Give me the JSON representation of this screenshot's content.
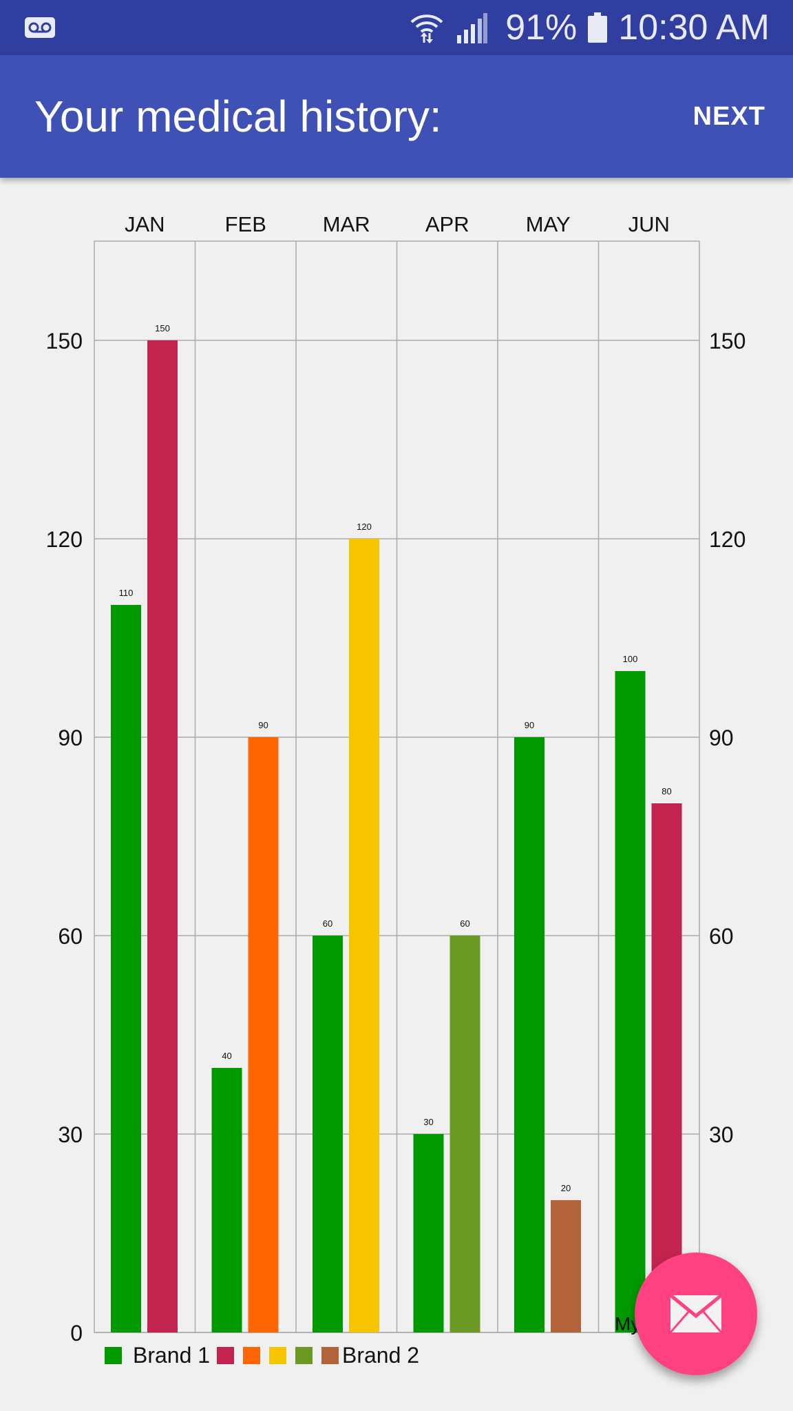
{
  "statusbar": {
    "battery": "91%",
    "time": "10:30 AM",
    "icons": [
      "voicemail-icon",
      "wifi-icon",
      "signal-icon",
      "battery-icon"
    ]
  },
  "appbar": {
    "title": "Your medical history:",
    "action": "NEXT"
  },
  "fab": {
    "icon": "mail-icon"
  },
  "colors": {
    "statusbar": "#303f9f",
    "appbar": "#3f51b5",
    "fab": "#ff4081",
    "brand1": "#009900",
    "brand2": [
      "#c2244f",
      "#ff6600",
      "#f6c500",
      "#6b9923",
      "#b2633a",
      "#c2244f"
    ]
  },
  "chart_data": {
    "type": "bar",
    "categories": [
      "JAN",
      "FEB",
      "MAR",
      "APR",
      "MAY",
      "JUN"
    ],
    "series": [
      {
        "name": "Brand 1",
        "values": [
          110,
          40,
          60,
          30,
          90,
          100
        ]
      },
      {
        "name": "Brand 2",
        "values": [
          150,
          90,
          120,
          60,
          20,
          80
        ]
      }
    ],
    "yticks": [
      0,
      30,
      60,
      90,
      120,
      150
    ],
    "ylim": [
      0,
      165
    ],
    "grid": true,
    "legend_position": "bottom-left",
    "partial_label": "My"
  }
}
